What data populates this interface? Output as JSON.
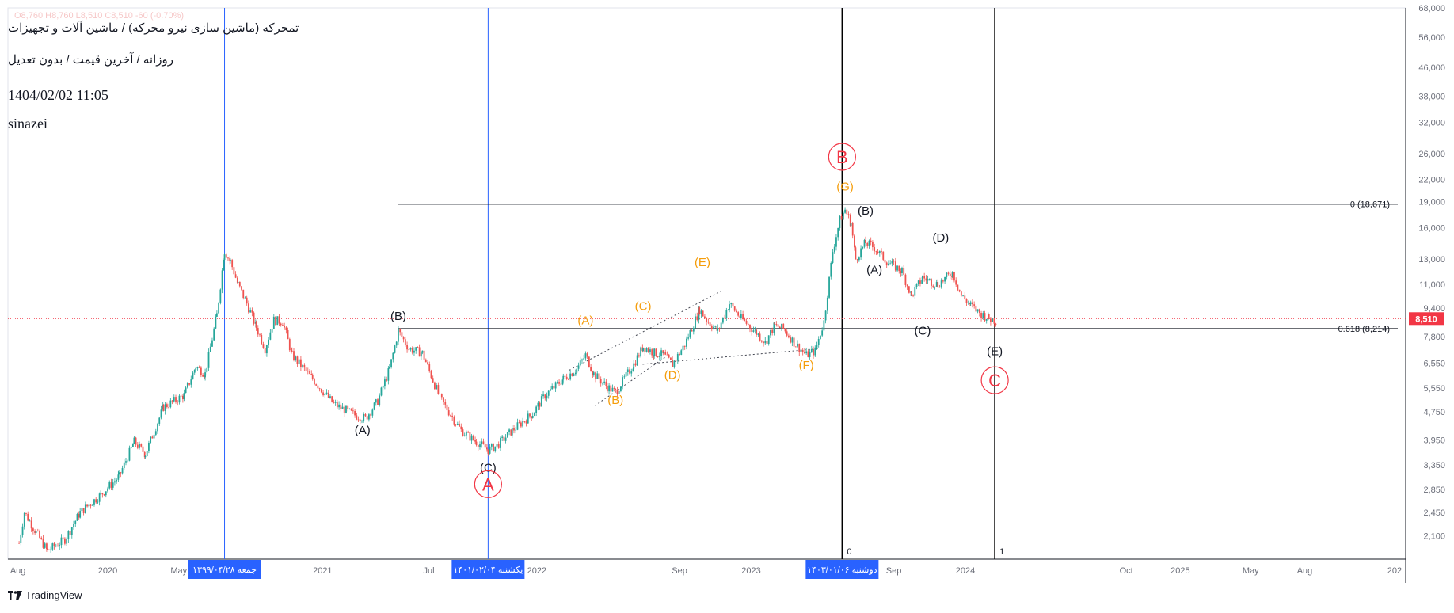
{
  "header": {
    "symbol_title": "تمحرکه (ماشین سازی نیرو محرکه) / ماشین آلات و تجهیزات",
    "subtitle": "روزانه / آخرین قیمت / بدون تعدیل",
    "date": "1404/02/02 11:05",
    "author": "sinazei",
    "ohlc_faint": "O8,760 H8,760 L8,510 C8,510 -60 (-0.70%)"
  },
  "branding": {
    "logo_label": "TradingView",
    "logo_icon": "tradingview-logo-icon"
  },
  "chart_data": {
    "type": "candlestick",
    "y_scale": "log",
    "ylim": [
      1800,
      68000
    ],
    "y_tick_labels": [
      "68,000",
      "56,000",
      "46,000",
      "38,000",
      "32,000",
      "26,000",
      "22,000",
      "19,000",
      "16,000",
      "13,000",
      "11,000",
      "9,400",
      "7,800",
      "6,550",
      "5,550",
      "4,750",
      "3,950",
      "3,350",
      "2,850",
      "2,450",
      "2,100"
    ],
    "y_ticks": [
      68000,
      56000,
      46000,
      38000,
      32000,
      26000,
      22000,
      19000,
      16000,
      13000,
      11000,
      9400,
      7800,
      6550,
      5550,
      4750,
      3950,
      3350,
      2850,
      2450,
      2100
    ],
    "x_tick_labels": [
      "Aug",
      "2020",
      "May",
      "2021",
      "Jul",
      "2022",
      "Sep",
      "2023",
      "May",
      "Sep",
      "2024",
      "Oct",
      "2025",
      "May",
      "Aug",
      "202"
    ],
    "x_ticks": [
      "2019-08-01",
      "2020-01-01",
      "2020-05-01",
      "2021-01-01",
      "2021-07-01",
      "2022-01-01",
      "2022-09-01",
      "2023-01-01",
      "2023-05-01",
      "2023-09-01",
      "2024-01-01",
      "2024-10-01",
      "2025-01-01",
      "2025-05-01",
      "2025-08-01",
      "2026-01-01"
    ],
    "x_range": [
      "2019-07-15",
      "2026-01-20"
    ],
    "last_price": {
      "value": 8510,
      "label": "8,510",
      "color": "#f23645"
    },
    "candle_colors": {
      "up": "#26a69a",
      "down": "#ef5350"
    },
    "price_path": [
      [
        "2019-08-03",
        2000
      ],
      [
        "2019-08-12",
        2450
      ],
      [
        "2019-09-01",
        2150
      ],
      [
        "2019-09-20",
        1900
      ],
      [
        "2019-10-20",
        2050
      ],
      [
        "2019-11-15",
        2450
      ],
      [
        "2019-12-20",
        2750
      ],
      [
        "2020-01-20",
        3100
      ],
      [
        "2020-02-15",
        3900
      ],
      [
        "2020-03-05",
        3600
      ],
      [
        "2020-04-05",
        4900
      ],
      [
        "2020-05-10",
        5300
      ],
      [
        "2020-05-30",
        6400
      ],
      [
        "2020-06-15",
        6100
      ],
      [
        "2020-07-05",
        9000
      ],
      [
        "2020-07-18",
        13700
      ],
      [
        "2020-07-28",
        12800
      ],
      [
        "2020-08-10",
        11000
      ],
      [
        "2020-08-25",
        9700
      ],
      [
        "2020-09-10",
        8300
      ],
      [
        "2020-09-25",
        7200
      ],
      [
        "2020-10-10",
        8700
      ],
      [
        "2020-10-25",
        8600
      ],
      [
        "2020-11-10",
        6900
      ],
      [
        "2020-12-15",
        5900
      ],
      [
        "2021-01-20",
        5000
      ],
      [
        "2021-02-25",
        4650
      ],
      [
        "2021-03-15",
        4550
      ],
      [
        "2021-04-05",
        5100
      ],
      [
        "2021-04-25",
        6300
      ],
      [
        "2021-05-10",
        8100
      ],
      [
        "2021-05-28",
        7200
      ],
      [
        "2021-06-20",
        7000
      ],
      [
        "2021-07-20",
        5200
      ],
      [
        "2021-08-25",
        4200
      ],
      [
        "2021-09-20",
        3900
      ],
      [
        "2021-10-10",
        3700
      ],
      [
        "2021-10-25",
        3800
      ],
      [
        "2021-11-20",
        4200
      ],
      [
        "2021-12-25",
        4700
      ],
      [
        "2022-01-15",
        5300
      ],
      [
        "2022-02-15",
        5900
      ],
      [
        "2022-03-10",
        6300
      ],
      [
        "2022-03-25",
        6900
      ],
      [
        "2022-04-08",
        6100
      ],
      [
        "2022-05-01",
        5600
      ],
      [
        "2022-05-15",
        5400
      ],
      [
        "2022-06-15",
        6500
      ],
      [
        "2022-07-01",
        7300
      ],
      [
        "2022-07-20",
        7000
      ],
      [
        "2022-08-05",
        6900
      ],
      [
        "2022-08-20",
        6500
      ],
      [
        "2022-09-10",
        7400
      ],
      [
        "2022-10-05",
        9300
      ],
      [
        "2022-10-20",
        8600
      ],
      [
        "2022-11-05",
        8100
      ],
      [
        "2022-11-25",
        9700
      ],
      [
        "2022-12-15",
        8800
      ],
      [
        "2023-01-10",
        8000
      ],
      [
        "2023-01-25",
        7500
      ],
      [
        "2023-02-10",
        8400
      ],
      [
        "2023-02-25",
        8200
      ],
      [
        "2023-03-15",
        7500
      ],
      [
        "2023-04-05",
        6900
      ],
      [
        "2023-04-20",
        7100
      ],
      [
        "2023-05-05",
        8600
      ],
      [
        "2023-05-20",
        13700
      ],
      [
        "2023-06-01",
        16800
      ],
      [
        "2023-06-10",
        18000
      ],
      [
        "2023-06-20",
        16500
      ],
      [
        "2023-06-28",
        13000
      ],
      [
        "2023-07-15",
        14500
      ],
      [
        "2023-07-30",
        14000
      ],
      [
        "2023-08-20",
        12800
      ],
      [
        "2023-09-15",
        12000
      ],
      [
        "2023-10-01",
        10200
      ],
      [
        "2023-10-20",
        11500
      ],
      [
        "2023-11-15",
        11000
      ],
      [
        "2023-12-10",
        11900
      ],
      [
        "2023-12-25",
        10200
      ],
      [
        "2024-01-10",
        9600
      ],
      [
        "2024-01-25",
        9100
      ],
      [
        "2024-02-10",
        8800
      ],
      [
        "2024-02-25",
        8600
      ]
    ],
    "wave_labels": [
      {
        "text": "(B)",
        "date": "2021-05-10",
        "value": 8700,
        "color": "#131722"
      },
      {
        "text": "(A)",
        "date": "2021-03-10",
        "value": 4100,
        "color": "#131722"
      },
      {
        "text": "(C)",
        "date": "2021-10-10",
        "value": 3200,
        "color": "#131722"
      },
      {
        "text": "(A)",
        "date": "2022-03-25",
        "value": 8450,
        "color": "#f59d0a"
      },
      {
        "text": "(B)",
        "date": "2022-05-15",
        "value": 5000,
        "color": "#f59d0a"
      },
      {
        "text": "(C)",
        "date": "2022-07-01",
        "value": 9300,
        "color": "#f59d0a"
      },
      {
        "text": "(D)",
        "date": "2022-08-20",
        "value": 5900,
        "color": "#f59d0a"
      },
      {
        "text": "(E)",
        "date": "2022-10-10",
        "value": 12400,
        "color": "#f59d0a"
      },
      {
        "text": "(F)",
        "date": "2023-04-05",
        "value": 6300,
        "color": "#f59d0a"
      },
      {
        "text": "(G)",
        "date": "2023-06-10",
        "value": 20400,
        "color": "#f59d0a"
      },
      {
        "text": "(B)",
        "date": "2023-07-15",
        "value": 17400,
        "color": "#131722"
      },
      {
        "text": "(A)",
        "date": "2023-07-30",
        "value": 11800,
        "color": "#131722"
      },
      {
        "text": "(D)",
        "date": "2023-11-20",
        "value": 14600,
        "color": "#131722"
      },
      {
        "text": "(C)",
        "date": "2023-10-20",
        "value": 7900,
        "color": "#131722"
      },
      {
        "text": "(E)",
        "date": "2024-02-20",
        "value": 6900,
        "color": "#131722"
      }
    ],
    "circle_labels": [
      {
        "text": "A",
        "date": "2021-10-10",
        "value": 2950,
        "color": "#f23645"
      },
      {
        "text": "B",
        "date": "2023-06-05",
        "value": 25500,
        "color": "#f23645"
      },
      {
        "text": "C",
        "date": "2024-02-20",
        "value": 5850,
        "color": "#f23645"
      }
    ],
    "fib_levels": [
      {
        "ratio": "0",
        "value": 18671,
        "label": "0 (18,671)"
      },
      {
        "ratio": "0.618",
        "value": 8214,
        "label": "0.618 (8,214)"
      }
    ],
    "fib_time_labels": [
      "0",
      "1"
    ],
    "vertical_markers": [
      {
        "date": "2020-07-18",
        "label": "جمعه ۱۳۹۹/۰۴/۲۸",
        "color": "#2962ff"
      },
      {
        "date": "2021-10-10",
        "label": "یکشنبه ۱۴۰۱/۰۲/۰۴",
        "color": "#2962ff"
      },
      {
        "date": "2023-06-05",
        "label": "دوشنبه ۱۴۰۳/۰۱/۰۶",
        "color": "#000000"
      },
      {
        "date": "2024-02-20",
        "label": "",
        "color": "#000000"
      }
    ],
    "trendlines": [
      {
        "from": [
          "2022-02-25",
          6250
        ],
        "to": [
          "2022-11-10",
          10500
        ]
      },
      {
        "from": [
          "2022-04-10",
          4950
        ],
        "to": [
          "2022-08-10",
          6850
        ]
      },
      {
        "from": [
          "2022-06-30",
          6500
        ],
        "to": [
          "2023-04-25",
          7200
        ]
      }
    ]
  }
}
